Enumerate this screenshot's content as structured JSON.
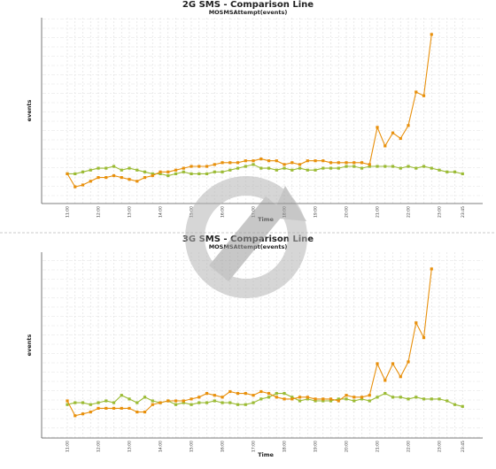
{
  "chart_data": [
    {
      "type": "line",
      "title": "2G SMS - Comparison Line",
      "subtitle": "MOSMSAttempt(events)",
      "x_label": "Time",
      "y_label": "events",
      "categories": [
        "11:00",
        null,
        null,
        null,
        "12:00",
        null,
        null,
        null,
        "13:00",
        null,
        null,
        null,
        "14:00",
        null,
        null,
        null,
        "15:00",
        null,
        null,
        null,
        "16:00",
        null,
        null,
        null,
        "17:00",
        null,
        null,
        null,
        "18:00",
        null,
        null,
        null,
        "19:00",
        null,
        null,
        null,
        "20:00",
        null,
        null,
        null,
        "21:00",
        null,
        null,
        null,
        "22:00",
        null,
        null,
        null,
        "23:00",
        null,
        null,
        "23:45"
      ],
      "ylim": [
        0,
        100
      ],
      "grid": true,
      "series": [
        {
          "color": "#9bbb34",
          "values": [
            16,
            16,
            17,
            18,
            19,
            19,
            20,
            18,
            19,
            18,
            17,
            16,
            16,
            15,
            16,
            17,
            16,
            16,
            16,
            17,
            17,
            18,
            19,
            20,
            21,
            19,
            19,
            18,
            19,
            18,
            19,
            18,
            18,
            19,
            19,
            19,
            20,
            20,
            19,
            20,
            20,
            20,
            20,
            19,
            20,
            19,
            20,
            19,
            18,
            17,
            17,
            16
          ]
        },
        {
          "color": "#e8900c",
          "values": [
            16,
            9,
            10,
            12,
            14,
            14,
            15,
            14,
            13,
            12,
            14,
            15,
            17,
            17,
            18,
            19,
            20,
            20,
            20,
            21,
            22,
            22,
            22,
            23,
            23,
            24,
            23,
            23,
            21,
            22,
            21,
            23,
            23,
            23,
            22,
            22,
            22,
            22,
            22,
            21,
            41,
            31,
            38,
            35,
            42,
            60,
            58,
            91,
            null,
            null,
            null,
            null
          ]
        }
      ]
    },
    {
      "type": "line",
      "title": "3G SMS - Comparison Line",
      "subtitle": "MOSMSAttempt(events)",
      "x_label": "Time",
      "y_label": "events",
      "categories": [
        "11:00",
        null,
        null,
        null,
        "12:00",
        null,
        null,
        null,
        "13:00",
        null,
        null,
        null,
        "14:00",
        null,
        null,
        null,
        "15:00",
        null,
        null,
        null,
        "16:00",
        null,
        null,
        null,
        "17:00",
        null,
        null,
        null,
        "18:00",
        null,
        null,
        null,
        "19:00",
        null,
        null,
        null,
        "20:00",
        null,
        null,
        null,
        "21:00",
        null,
        null,
        null,
        "22:00",
        null,
        null,
        null,
        "23:00",
        null,
        null,
        "23:45"
      ],
      "ylim": [
        0,
        100
      ],
      "grid": true,
      "series": [
        {
          "color": "#9bbb34",
          "values": [
            18,
            19,
            19,
            18,
            19,
            20,
            19,
            23,
            21,
            19,
            22,
            20,
            19,
            20,
            18,
            19,
            18,
            19,
            19,
            20,
            19,
            19,
            18,
            18,
            19,
            21,
            22,
            24,
            24,
            22,
            20,
            21,
            20,
            20,
            20,
            21,
            21,
            20,
            21,
            20,
            22,
            24,
            22,
            22,
            21,
            22,
            21,
            21,
            21,
            20,
            18,
            17
          ]
        },
        {
          "color": "#e8900c",
          "values": [
            20,
            12,
            13,
            14,
            16,
            16,
            16,
            16,
            16,
            14,
            14,
            18,
            19,
            20,
            20,
            20,
            21,
            22,
            24,
            23,
            22,
            25,
            24,
            24,
            23,
            25,
            24,
            22,
            21,
            21,
            22,
            22,
            21,
            21,
            21,
            20,
            23,
            22,
            22,
            23,
            40,
            31,
            40,
            33,
            41,
            62,
            54,
            91,
            null,
            null,
            null,
            null
          ]
        }
      ]
    }
  ]
}
